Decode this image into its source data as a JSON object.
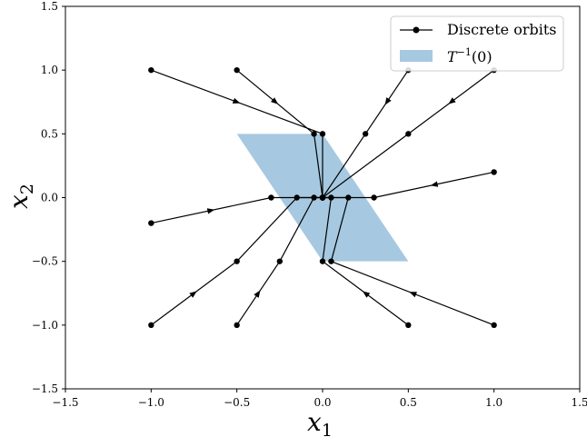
{
  "chart_data": {
    "type": "line",
    "xlabel": "x",
    "xlabel_sub": "1",
    "ylabel": "x",
    "ylabel_sub": "2",
    "xlim": [
      -1.5,
      1.5
    ],
    "ylim": [
      -1.5,
      1.5
    ],
    "xticks": [
      -1.5,
      -1.0,
      -0.5,
      0.0,
      0.5,
      1.0,
      1.5
    ],
    "yticks": [
      -1.5,
      -1.0,
      -0.5,
      0.0,
      0.5,
      1.0,
      1.5
    ],
    "xtick_labels": [
      "−1.5",
      "−1.0",
      "−0.5",
      "0.0",
      "0.5",
      "1.0",
      "1.5"
    ],
    "ytick_labels": [
      "−1.5",
      "−1.0",
      "−0.5",
      "0.0",
      "0.5",
      "1.0",
      "1.5"
    ],
    "grid": false,
    "legend_position": "top-right",
    "colors": {
      "orbit": "#000000",
      "region": "#a6c8e0"
    },
    "region": {
      "name": "T−1(0)",
      "name_base": "T",
      "name_sup": "−1",
      "name_tail": "(0)",
      "polygon": [
        [
          -0.5,
          0.5
        ],
        [
          0.0,
          0.5
        ],
        [
          0.5,
          -0.5
        ],
        [
          0.0,
          -0.5
        ]
      ]
    },
    "orbits_label": "Discrete orbits",
    "orbits": [
      {
        "points": [
          [
            -1,
            1
          ],
          [
            0,
            0.5
          ],
          [
            0,
            0
          ]
        ]
      },
      {
        "points": [
          [
            -0.5,
            1
          ],
          [
            -0.05,
            0.5
          ],
          [
            0,
            0
          ]
        ]
      },
      {
        "points": [
          [
            0.5,
            1
          ],
          [
            0.25,
            0.5
          ],
          [
            0,
            0
          ]
        ]
      },
      {
        "points": [
          [
            1,
            1
          ],
          [
            0.5,
            0.5
          ],
          [
            0,
            0
          ]
        ]
      },
      {
        "points": [
          [
            -1,
            -0.2
          ],
          [
            -0.3,
            0
          ],
          [
            0,
            0
          ]
        ]
      },
      {
        "points": [
          [
            1,
            0.2
          ],
          [
            0.3,
            0
          ],
          [
            0,
            0
          ]
        ]
      },
      {
        "points": [
          [
            -1,
            -1
          ],
          [
            -0.5,
            -0.5
          ],
          [
            -0.15,
            0
          ],
          [
            0,
            0
          ]
        ]
      },
      {
        "points": [
          [
            -0.5,
            -1
          ],
          [
            -0.25,
            -0.5
          ],
          [
            -0.05,
            0
          ],
          [
            0,
            0
          ]
        ]
      },
      {
        "points": [
          [
            0.5,
            -1
          ],
          [
            0,
            -0.5
          ],
          [
            0.05,
            0
          ],
          [
            0,
            0
          ]
        ]
      },
      {
        "points": [
          [
            1,
            -1
          ],
          [
            0.05,
            -0.5
          ],
          [
            0.15,
            0
          ],
          [
            0,
            0
          ]
        ]
      }
    ]
  }
}
